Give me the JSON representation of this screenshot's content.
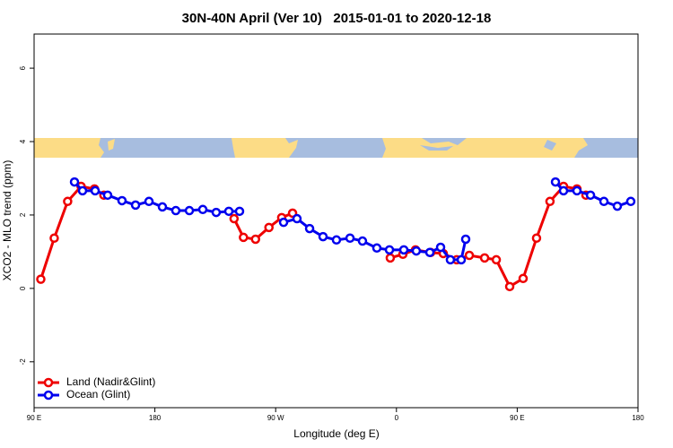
{
  "chart_data": {
    "type": "line",
    "title": "30N-40N April (Ver 10)   2015-01-01 to 2020-12-18",
    "xlabel": "Longitude (deg E)",
    "ylabel": "XCO2 - MLO trend (ppm)",
    "xlim": [
      90,
      540
    ],
    "ylim": [
      -3.25,
      6.93
    ],
    "xticks": [
      {
        "value": 90,
        "label": "90 E"
      },
      180,
      {
        "value": 270,
        "label": "90 W"
      },
      {
        "value": 360,
        "label": "0"
      },
      {
        "value": 450,
        "label": "90 E"
      },
      180
    ],
    "yticks": [
      -2,
      0,
      2,
      4,
      6
    ],
    "legend": "bottomleft",
    "series": [
      {
        "name": "Land (Nadir&Glint)",
        "color": "#ee0000",
        "x": [
          95,
          105,
          115,
          125,
          135,
          142,
          190,
          239,
          246,
          255,
          265,
          274.5,
          282.6,
          320,
          355.4,
          364.8,
          374.2,
          385.5,
          394.9,
          404.9,
          414.3,
          425.7,
          434.4,
          444.4,
          454.4,
          464.4,
          474.4,
          484.5,
          494.5,
          501.2
        ],
        "values": [
          0.25,
          1.37,
          2.37,
          2.78,
          2.71,
          2.54,
          null,
          1.9,
          1.39,
          1.34,
          1.66,
          1.93,
          2.05,
          null,
          0.83,
          0.93,
          1.05,
          0.98,
          0.95,
          0.78,
          0.9,
          0.83,
          0.78,
          0.05,
          0.27,
          1.37,
          2.37,
          2.78,
          2.71,
          2.54
        ]
      },
      {
        "name": "Ocean (Glint)",
        "color": "#0000ee",
        "x": [
          120.1,
          126.1,
          135.5,
          144.8,
          155.5,
          165.6,
          175.6,
          185.6,
          195.6,
          205.7,
          215.7,
          225.7,
          235.1,
          243.1,
          260,
          275.9,
          285.9,
          295.3,
          305.3,
          315.3,
          325.4,
          334.7,
          345.4,
          354.8,
          365.5,
          374.8,
          384.9,
          392.9,
          400.2,
          408.3,
          411.6,
          450,
          478.5,
          484.5,
          494.5,
          504.6,
          514.6,
          524.6,
          534.6
        ],
        "values": [
          2.9,
          2.66,
          2.66,
          2.54,
          2.39,
          2.27,
          2.37,
          2.22,
          2.12,
          2.12,
          2.15,
          2.07,
          2.1,
          2.1,
          null,
          1.8,
          1.9,
          1.63,
          1.41,
          1.32,
          1.37,
          1.29,
          1.1,
          1.05,
          1.05,
          1.02,
          0.98,
          1.12,
          0.78,
          0.78,
          1.34,
          null,
          2.9,
          2.66,
          2.66,
          2.54,
          2.37,
          2.24,
          2.37
        ]
      }
    ]
  }
}
